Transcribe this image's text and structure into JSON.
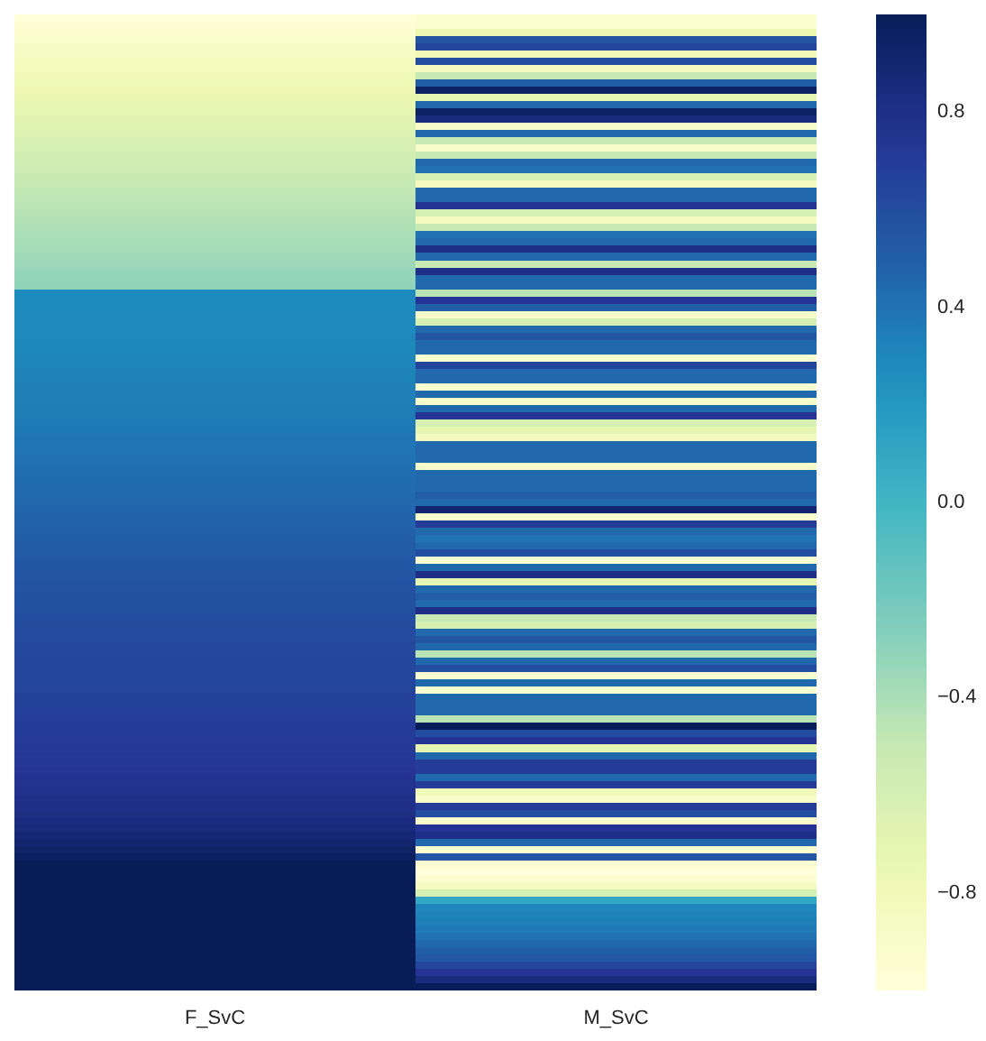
{
  "chart_data": {
    "type": "heatmap",
    "categories": [
      "F_SvC",
      "M_SvC"
    ],
    "y_categories": [
      null,
      null,
      null,
      null,
      null,
      null,
      null,
      null,
      null,
      null,
      null,
      null,
      null,
      null,
      null,
      null,
      null,
      null,
      null,
      null,
      null,
      null,
      null,
      null,
      null,
      null,
      null,
      null,
      null,
      null,
      null,
      null,
      null,
      null,
      null,
      null,
      null,
      null,
      null,
      null,
      null,
      null,
      null,
      null,
      null,
      null,
      null,
      null,
      null,
      null,
      null,
      null,
      null,
      null,
      null,
      null,
      null,
      null,
      null,
      null,
      null,
      null,
      null,
      null,
      null,
      null,
      null,
      null,
      null,
      null,
      null,
      null,
      null,
      null,
      null,
      null,
      null,
      null,
      null,
      null,
      null,
      null,
      null,
      null,
      null,
      null,
      null,
      null,
      null,
      null,
      null,
      null,
      null,
      null,
      null,
      null,
      null,
      null,
      null,
      null,
      null,
      null,
      null,
      null,
      null,
      null,
      null,
      null,
      null,
      null,
      null,
      null,
      null,
      null,
      null,
      null,
      null,
      null,
      null,
      null,
      null,
      null,
      null,
      null,
      null,
      null,
      null,
      null,
      null,
      null,
      null,
      null,
      null,
      null,
      null
    ],
    "cells": [
      [
        -1.0,
        -0.95
      ],
      [
        -0.97,
        -0.95
      ],
      [
        -0.94,
        -0.75
      ],
      [
        -0.91,
        0.55
      ],
      [
        -0.88,
        0.65
      ],
      [
        -0.86,
        -0.8
      ],
      [
        -0.84,
        0.6
      ],
      [
        -0.82,
        -0.85
      ],
      [
        -0.8,
        -0.5
      ],
      [
        -0.78,
        0.5
      ],
      [
        -0.76,
        0.95
      ],
      [
        -0.74,
        -0.7
      ],
      [
        -0.72,
        0.45
      ],
      [
        -0.7,
        0.95
      ],
      [
        -0.68,
        0.85
      ],
      [
        -0.66,
        -0.9
      ],
      [
        -0.64,
        0.45
      ],
      [
        -0.62,
        -0.5
      ],
      [
        -0.6,
        -0.9
      ],
      [
        -0.58,
        -0.5
      ],
      [
        -0.56,
        0.45
      ],
      [
        -0.54,
        0.4
      ],
      [
        -0.52,
        -0.6
      ],
      [
        -0.5,
        -0.85
      ],
      [
        -0.48,
        0.45
      ],
      [
        -0.47,
        0.45
      ],
      [
        -0.46,
        0.75
      ],
      [
        -0.44,
        -0.6
      ],
      [
        -0.43,
        -0.85
      ],
      [
        -0.42,
        -0.5
      ],
      [
        -0.4,
        0.4
      ],
      [
        -0.39,
        0.45
      ],
      [
        -0.38,
        0.8
      ],
      [
        -0.36,
        0.45
      ],
      [
        -0.35,
        -0.5
      ],
      [
        -0.33,
        0.8
      ],
      [
        -0.32,
        0.45
      ],
      [
        -0.3,
        0.45
      ],
      [
        0.28,
        -0.45
      ],
      [
        0.28,
        0.75
      ],
      [
        0.28,
        0.5
      ],
      [
        0.29,
        -0.9
      ],
      [
        0.29,
        -0.6
      ],
      [
        0.29,
        0.45
      ],
      [
        0.3,
        0.55
      ],
      [
        0.3,
        0.45
      ],
      [
        0.3,
        0.45
      ],
      [
        0.31,
        -0.95
      ],
      [
        0.31,
        0.65
      ],
      [
        0.32,
        0.45
      ],
      [
        0.32,
        0.45
      ],
      [
        0.33,
        -0.95
      ],
      [
        0.33,
        0.45
      ],
      [
        0.34,
        -0.9
      ],
      [
        0.35,
        0.45
      ],
      [
        0.35,
        0.75
      ],
      [
        0.36,
        -0.6
      ],
      [
        0.37,
        -0.7
      ],
      [
        0.38,
        -0.85
      ],
      [
        0.38,
        0.45
      ],
      [
        0.39,
        0.45
      ],
      [
        0.4,
        0.45
      ],
      [
        0.41,
        -0.9
      ],
      [
        0.42,
        0.45
      ],
      [
        0.43,
        0.45
      ],
      [
        0.44,
        0.45
      ],
      [
        0.44,
        0.5
      ],
      [
        0.45,
        0.45
      ],
      [
        0.46,
        0.9
      ],
      [
        0.47,
        -0.9
      ],
      [
        0.48,
        0.7
      ],
      [
        0.49,
        0.45
      ],
      [
        0.5,
        0.4
      ],
      [
        0.51,
        0.45
      ],
      [
        0.52,
        0.6
      ],
      [
        0.53,
        -0.95
      ],
      [
        0.54,
        0.45
      ],
      [
        0.55,
        0.8
      ],
      [
        0.56,
        -0.7
      ],
      [
        0.57,
        0.45
      ],
      [
        0.58,
        0.5
      ],
      [
        0.58,
        0.45
      ],
      [
        0.59,
        0.8
      ],
      [
        0.6,
        -0.5
      ],
      [
        0.61,
        -0.6
      ],
      [
        0.62,
        0.45
      ],
      [
        0.62,
        0.55
      ],
      [
        0.63,
        0.45
      ],
      [
        0.63,
        -0.45
      ],
      [
        0.64,
        0.45
      ],
      [
        0.64,
        0.6
      ],
      [
        0.65,
        -0.95
      ],
      [
        0.65,
        0.45
      ],
      [
        0.66,
        -0.95
      ],
      [
        0.67,
        0.45
      ],
      [
        0.67,
        0.45
      ],
      [
        0.68,
        0.45
      ],
      [
        0.69,
        -0.45
      ],
      [
        0.7,
        1.0
      ],
      [
        0.7,
        0.6
      ],
      [
        0.71,
        0.75
      ],
      [
        0.72,
        -0.7
      ],
      [
        0.73,
        0.45
      ],
      [
        0.74,
        0.7
      ],
      [
        0.75,
        0.7
      ],
      [
        0.76,
        0.45
      ],
      [
        0.77,
        0.7
      ],
      [
        0.78,
        -0.8
      ],
      [
        0.79,
        -0.9
      ],
      [
        0.8,
        0.7
      ],
      [
        0.82,
        0.6
      ],
      [
        0.84,
        -0.9
      ],
      [
        0.86,
        0.75
      ],
      [
        0.88,
        0.8
      ],
      [
        0.91,
        0.45
      ],
      [
        0.94,
        -0.95
      ],
      [
        0.97,
        0.55
      ],
      [
        1.0,
        -0.95
      ],
      [
        1.0,
        -1.0
      ],
      [
        1.0,
        -0.95
      ],
      [
        1.0,
        -0.85
      ],
      [
        1.0,
        -0.6
      ],
      [
        1.0,
        0.1
      ],
      [
        1.0,
        0.3
      ],
      [
        1.0,
        0.32
      ],
      [
        1.0,
        0.34
      ],
      [
        1.0,
        0.36
      ],
      [
        1.0,
        0.4
      ],
      [
        1.0,
        0.45
      ],
      [
        1.0,
        0.5
      ],
      [
        1.0,
        0.55
      ],
      [
        1.0,
        0.65
      ],
      [
        1.0,
        0.75
      ],
      [
        1.0,
        0.85
      ],
      [
        1.0,
        1.0
      ]
    ],
    "clim": [
      -1,
      1
    ],
    "cticks": [
      {
        "value": -0.8,
        "label": "−0.8"
      },
      {
        "value": -0.4,
        "label": "−0.4"
      },
      {
        "value": 0,
        "label": "0.0"
      },
      0.4,
      0.8
    ],
    "tick_labels": "x"
  }
}
